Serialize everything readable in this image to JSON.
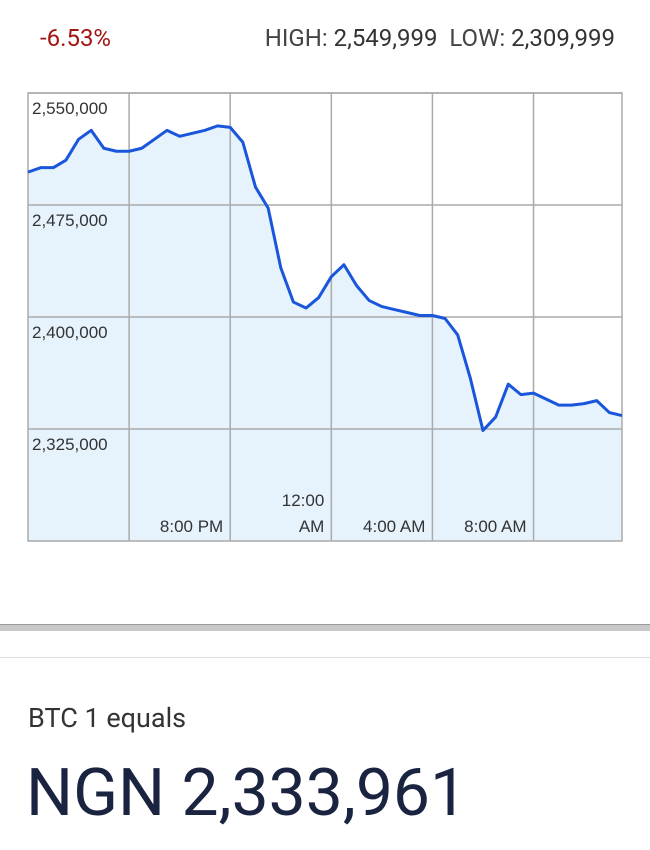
{
  "header": {
    "change": "-6.53%",
    "high_label": "HIGH:",
    "high_value": "2,549,999",
    "low_label": "LOW:",
    "low_value": "2,309,999"
  },
  "chart_data": {
    "type": "line",
    "x": [
      0,
      1,
      2,
      3,
      4,
      5,
      6,
      7,
      8,
      9,
      10,
      11,
      12,
      13,
      14,
      15,
      16,
      17,
      18,
      19,
      20,
      21,
      22,
      23,
      24,
      25,
      26,
      27,
      28,
      29,
      30,
      31,
      32,
      33,
      34,
      35,
      36,
      37,
      38,
      39,
      40,
      41,
      42,
      43,
      44,
      45,
      46,
      47
    ],
    "series": [
      {
        "name": "BTC",
        "color": "#1a56db",
        "fill": "#e6f3fc",
        "values": [
          2497000,
          2500000,
          2500000,
          2505000,
          2519000,
          2525000,
          2513000,
          2511000,
          2511000,
          2513000,
          2519000,
          2525000,
          2521000,
          2523000,
          2525000,
          2528000,
          2527000,
          2517000,
          2487000,
          2473000,
          2433000,
          2410000,
          2406000,
          2413000,
          2427000,
          2435000,
          2421000,
          2411000,
          2407000,
          2405000,
          2403000,
          2401000,
          2401000,
          2399000,
          2388000,
          2359000,
          2324000,
          2333000,
          2355000,
          2348000,
          2349000,
          2345000,
          2341000,
          2341000,
          2342000,
          2344000,
          2336000,
          2334000
        ]
      }
    ],
    "xlim": [
      0,
      47
    ],
    "xticks": [
      {
        "value": 8,
        "label": null
      },
      {
        "value": 16,
        "label": "8:00 PM"
      },
      {
        "value": 24,
        "label": "12:00 AM"
      },
      {
        "value": 32,
        "label": "4:00 AM"
      },
      {
        "value": 40,
        "label": "8:00 AM"
      }
    ],
    "ylim": [
      2250000,
      2550000
    ],
    "yticks": [
      {
        "value": 2550000,
        "label": "2,550,000"
      },
      {
        "value": 2475000,
        "label": "2,475,000"
      },
      {
        "value": 2400000,
        "label": "2,400,000"
      },
      {
        "value": 2325000,
        "label": "2,325,000"
      }
    ],
    "grid": true
  },
  "footer": {
    "caption": "BTC 1 equals",
    "amount": "NGN 2,333,961"
  }
}
